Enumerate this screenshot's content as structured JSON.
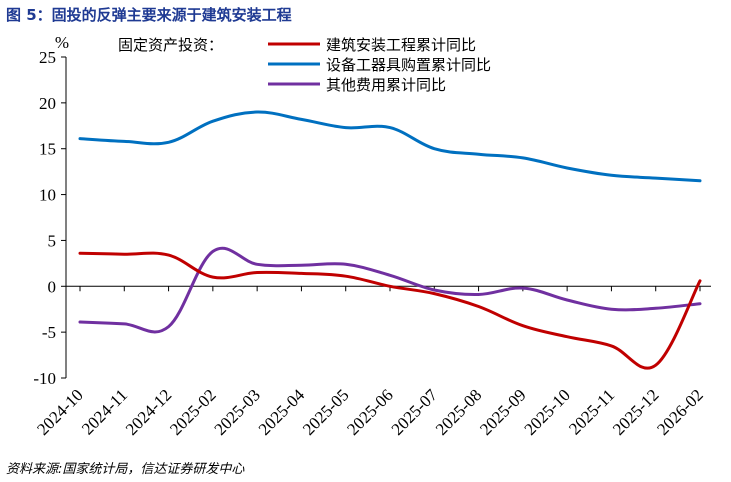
{
  "figure": {
    "title": "图 5：固投的反弹主要来源于建筑安装工程",
    "source": "资料来源:国家统计局，信达证券研发中心"
  },
  "chart_data": {
    "type": "line",
    "ylabel": "%",
    "ylim": [
      -10,
      25
    ],
    "yticks": [
      -10,
      -5,
      0,
      5,
      10,
      15,
      20,
      25
    ],
    "categories": [
      "2024-10",
      "2024-11",
      "2024-12",
      "2025-02",
      "2025-03",
      "2025-04",
      "2025-05",
      "2025-06",
      "2025-07",
      "2025-08",
      "2025-09",
      "2025-10",
      "2025-11",
      "2025-12",
      "2026-02"
    ],
    "legend_prefix": "固定资产投资：",
    "legend_position": "top-right",
    "grid": false,
    "series": [
      {
        "name": "建筑安装工程累计同比",
        "color": "#c00000",
        "values": [
          3.6,
          3.5,
          3.4,
          1.0,
          1.5,
          1.4,
          1.1,
          0.0,
          -0.8,
          -2.2,
          -4.3,
          -5.5,
          -6.5,
          -8.6,
          0.6
        ]
      },
      {
        "name": "设备工器具购置累计同比",
        "color": "#0070c0",
        "values": [
          16.1,
          15.8,
          15.7,
          18.0,
          19.0,
          18.2,
          17.3,
          17.3,
          15.0,
          14.4,
          14.0,
          12.9,
          12.1,
          11.8,
          11.5
        ]
      },
      {
        "name": "其他费用累计同比",
        "color": "#7030a0",
        "values": [
          -3.9,
          -4.1,
          -4.4,
          3.8,
          2.4,
          2.3,
          2.4,
          1.2,
          -0.4,
          -0.9,
          -0.2,
          -1.5,
          -2.5,
          -2.4,
          -1.9
        ]
      }
    ]
  }
}
